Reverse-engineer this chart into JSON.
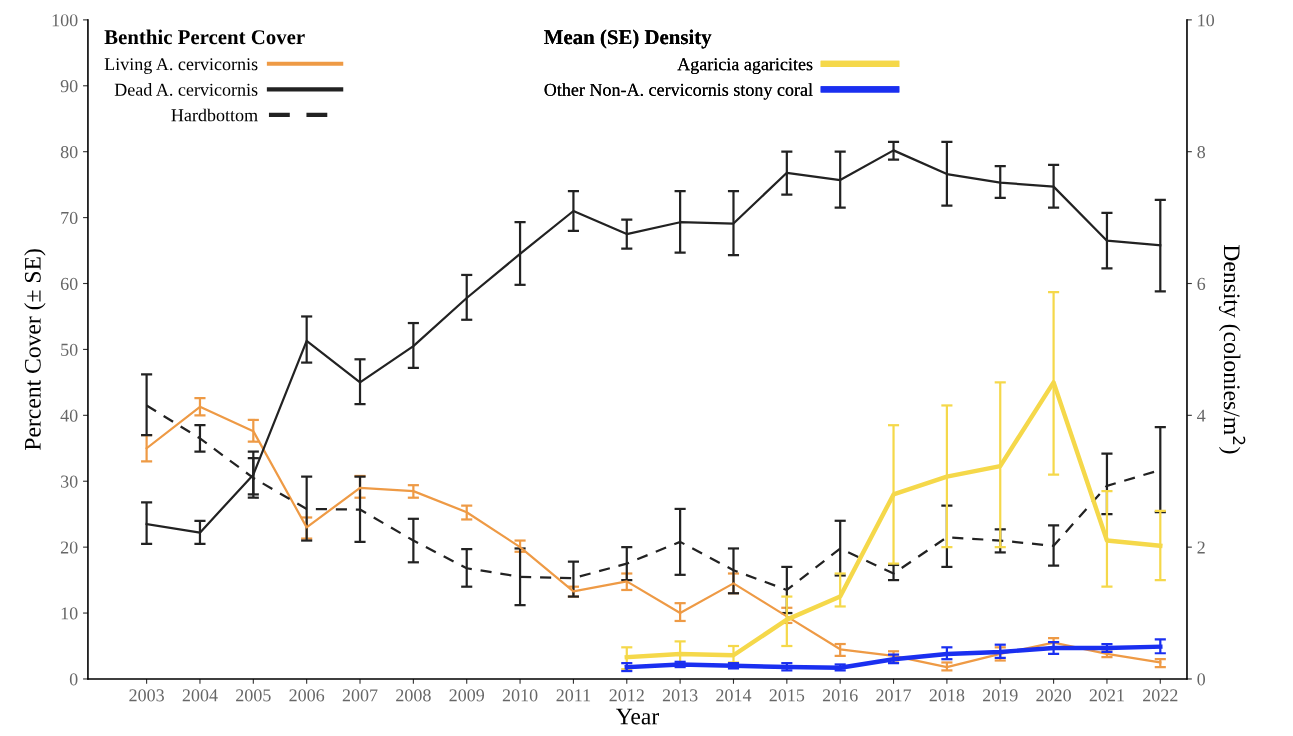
{
  "chart_data": {
    "type": "line",
    "xlabel": "Year",
    "ylabel": "Percent Cover (± SE)",
    "y2label": "Density (colonies/m$^{2}$)",
    "legend_title": [
      "Benthic Percent Cover",
      "Mean (SE) Density"
    ],
    "legend": "top left",
    "grid": false,
    "marker": "none",
    "xlim": [
      2001.9,
      2022.5
    ],
    "xticks": [
      2003,
      2004,
      2005,
      2006,
      2007,
      2008,
      2009,
      2010,
      2011,
      2012,
      2013,
      2014,
      2015,
      2016,
      2017,
      2018,
      2019,
      2020,
      2021,
      2022
    ],
    "ylim": [
      0,
      100
    ],
    "yticks": [
      0,
      10,
      20,
      30,
      40,
      50,
      60,
      70,
      80,
      90,
      100
    ],
    "y2lim": [
      0,
      10
    ],
    "y2ticks": [
      0,
      2,
      4,
      6,
      8,
      10
    ],
    "series": [
      {
        "name": "Living A. cervicornis",
        "color": "#ee9a45",
        "axis": "y",
        "line_style": "solid",
        "x": [
          2003,
          2004,
          2005,
          2006,
          2007,
          2008,
          2009,
          2010,
          2011,
          2012,
          2013,
          2014,
          2015,
          2016,
          2017,
          2018,
          2019,
          2020,
          2021,
          2022
        ],
        "values": [
          35,
          41.3,
          37.6,
          23,
          29,
          28.5,
          25.3,
          20,
          13.3,
          14.8,
          10,
          14.5,
          9.5,
          4.5,
          3.5,
          1.8,
          3.8,
          5.5,
          3.8,
          2.5
        ],
        "errors": [
          [
            33,
            37
          ],
          [
            40,
            42.6
          ],
          [
            36,
            39.3
          ],
          [
            21.3,
            24.5
          ],
          [
            27.5,
            30.8
          ],
          [
            27.5,
            29.4
          ],
          [
            24.2,
            26.3
          ],
          [
            19.3,
            21
          ],
          [
            12.5,
            14
          ],
          [
            13.5,
            16
          ],
          [
            8.8,
            11.5
          ],
          [
            13,
            16
          ],
          [
            8.5,
            10.8
          ],
          [
            3.5,
            5.3
          ],
          [
            2.8,
            4.2
          ],
          [
            1.3,
            2.5
          ],
          [
            2.8,
            4.8
          ],
          [
            4.8,
            6.2
          ],
          [
            3.3,
            4.5
          ],
          [
            1.8,
            3
          ]
        ]
      },
      {
        "name": "Dead A. cervicornis",
        "color": "#222222",
        "axis": "y",
        "line_style": "solid",
        "x": [
          2003,
          2004,
          2005,
          2006,
          2007,
          2008,
          2009,
          2010,
          2011,
          2012,
          2013,
          2014,
          2015,
          2016,
          2017,
          2018,
          2019,
          2020,
          2021,
          2022
        ],
        "values": [
          23.5,
          22.2,
          31,
          51.3,
          45,
          50.5,
          57.8,
          64.5,
          71,
          67.5,
          69.3,
          69.1,
          76.8,
          75.7,
          80.2,
          76.6,
          75.3,
          74.7,
          66.5,
          65.8
        ],
        "errors": [
          [
            20.5,
            26.8
          ],
          [
            20.5,
            24
          ],
          [
            28,
            34.5
          ],
          [
            48,
            55
          ],
          [
            41.7,
            48.5
          ],
          [
            47.2,
            54
          ],
          [
            54.5,
            61.3
          ],
          [
            59.8,
            69.3
          ],
          [
            68,
            74
          ],
          [
            65.3,
            69.7
          ],
          [
            64.7,
            74
          ],
          [
            64.3,
            74
          ],
          [
            73.5,
            80
          ],
          [
            71.5,
            80
          ],
          [
            78.8,
            81.5
          ],
          [
            71.8,
            81.5
          ],
          [
            73,
            77.8
          ],
          [
            71.5,
            78
          ],
          [
            62.3,
            70.7
          ],
          [
            58.8,
            72.7
          ]
        ]
      },
      {
        "name": "Hardbottom",
        "color": "#222222",
        "axis": "y",
        "line_style": "dashed",
        "x": [
          2003,
          2004,
          2005,
          2006,
          2007,
          2008,
          2009,
          2010,
          2011,
          2012,
          2013,
          2014,
          2015,
          2016,
          2017,
          2018,
          2019,
          2020,
          2021,
          2022
        ],
        "values": [
          41.5,
          36.5,
          30.5,
          25.8,
          25.7,
          21,
          16.8,
          15.5,
          15.3,
          17.5,
          20.8,
          16.5,
          13.5,
          19.8,
          16,
          21.5,
          21,
          20.2,
          29.3,
          31.7
        ],
        "errors": [
          [
            37,
            46.2
          ],
          [
            34.5,
            38.5
          ],
          [
            27.5,
            33.5
          ],
          [
            21,
            30.7
          ],
          [
            20.8,
            30.7
          ],
          [
            17.7,
            24.3
          ],
          [
            14,
            19.7
          ],
          [
            11.2,
            19.8
          ],
          [
            12.5,
            17.8
          ],
          [
            15,
            20
          ],
          [
            15.8,
            25.8
          ],
          [
            13,
            19.8
          ],
          [
            10,
            17
          ],
          [
            15.7,
            24
          ],
          [
            15,
            17.3
          ],
          [
            17,
            26.3
          ],
          [
            19.2,
            22.7
          ],
          [
            17.2,
            23.3
          ],
          [
            25,
            34.2
          ],
          [
            25.3,
            38.2
          ]
        ]
      },
      {
        "name": "Agaricia agaricites",
        "color": "#f5d84a",
        "axis": "y2",
        "line_style": "solid",
        "x": [
          2012,
          2013,
          2014,
          2015,
          2016,
          2017,
          2018,
          2019,
          2020,
          2021,
          2022
        ],
        "values": [
          0.33,
          0.38,
          0.36,
          0.9,
          1.25,
          2.8,
          3.07,
          3.23,
          4.5,
          2.1,
          2.02
        ],
        "errors": [
          [
            0.15,
            0.48
          ],
          [
            0.2,
            0.57
          ],
          [
            0.25,
            0.5
          ],
          [
            0.5,
            1.25
          ],
          [
            1.1,
            1.6
          ],
          [
            1.75,
            3.85
          ],
          [
            2.0,
            4.15
          ],
          [
            2.0,
            4.5
          ],
          [
            3.1,
            5.87
          ],
          [
            1.4,
            2.85
          ],
          [
            1.5,
            2.55
          ]
        ]
      },
      {
        "name": "Other Non-A. cervicornis stony coral",
        "color": "#1a2ff0",
        "axis": "y2",
        "line_style": "solid",
        "x": [
          2012,
          2013,
          2014,
          2015,
          2016,
          2017,
          2018,
          2019,
          2020,
          2021,
          2022
        ],
        "values": [
          0.18,
          0.22,
          0.2,
          0.18,
          0.17,
          0.3,
          0.38,
          0.41,
          0.47,
          0.47,
          0.49
        ],
        "errors": [
          [
            0.12,
            0.24
          ],
          [
            0.18,
            0.26
          ],
          [
            0.16,
            0.24
          ],
          [
            0.13,
            0.24
          ],
          [
            0.13,
            0.22
          ],
          [
            0.24,
            0.37
          ],
          [
            0.3,
            0.48
          ],
          [
            0.32,
            0.52
          ],
          [
            0.38,
            0.56
          ],
          [
            0.41,
            0.53
          ],
          [
            0.39,
            0.6
          ]
        ]
      }
    ]
  }
}
